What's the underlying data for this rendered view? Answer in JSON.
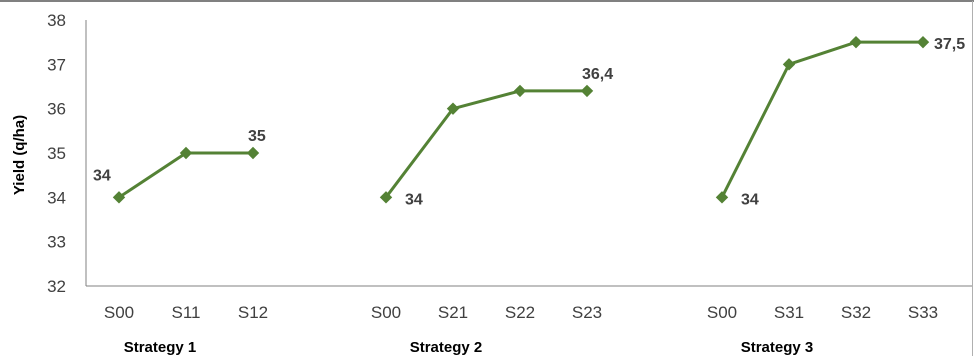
{
  "chart_data": {
    "type": "line",
    "title": "",
    "ylabel": "Yield (q/ha)",
    "ylim": [
      32,
      38
    ],
    "yticks": [
      "32",
      "33",
      "34",
      "35",
      "36",
      "37",
      "38"
    ],
    "grid": false,
    "legend": "none",
    "colors": {
      "series": "#548235",
      "axis": "#808080",
      "text": "#404040"
    },
    "groups": [
      {
        "name": "Strategy 1",
        "categories": [
          "S00",
          "S11",
          "S12"
        ],
        "values": [
          34,
          35,
          35
        ],
        "labels": [
          {
            "index": 0,
            "text": "34"
          },
          {
            "index": 2,
            "text": "35"
          }
        ]
      },
      {
        "name": "Strategy 2",
        "categories": [
          "S00",
          "S21",
          "S22",
          "S23"
        ],
        "values": [
          34,
          36,
          36.4,
          36.4
        ],
        "labels": [
          {
            "index": 0,
            "text": "34"
          },
          {
            "index": 3,
            "text": "36,4"
          }
        ]
      },
      {
        "name": "Strategy 3",
        "categories": [
          "S00",
          "S31",
          "S32",
          "S33"
        ],
        "values": [
          34,
          37,
          37.5,
          37.5
        ],
        "labels": [
          {
            "index": 0,
            "text": "34"
          },
          {
            "index": 3,
            "text": "37,5"
          }
        ]
      }
    ]
  }
}
